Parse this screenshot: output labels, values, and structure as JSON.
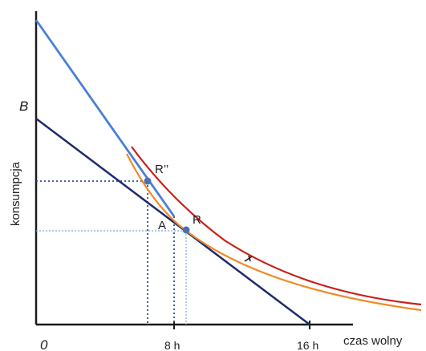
{
  "labels": {
    "y_axis": "konsumpcja",
    "x_axis": "czas wolny",
    "origin": "0",
    "intercept_b": "B",
    "tick_8h": "8 h",
    "tick_16h": "16 h",
    "point_r": "R",
    "point_r2": "R’’",
    "point_a": "A"
  },
  "colors": {
    "axis": "#1a1a1a",
    "budget_line": "#1f2a6b",
    "steep_line": "#4a7fd4",
    "indifference_red": "#c8201a",
    "indifference_orange": "#ef8a2a",
    "guide_dotted_blue": "#2f4f9a",
    "guide_light": "#7ea6d8",
    "point": "#4a6fb5"
  },
  "icons": [
    "arrow-marker-icon"
  ]
}
